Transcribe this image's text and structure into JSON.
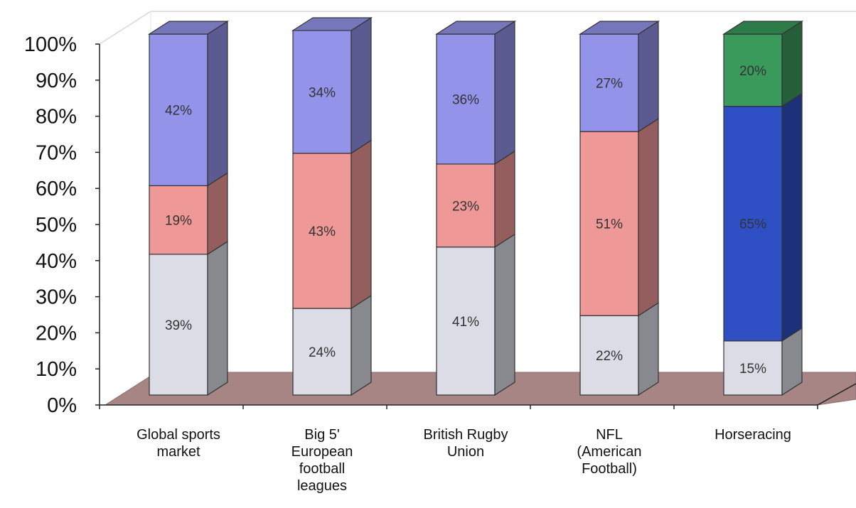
{
  "chart_data": {
    "type": "bar",
    "stacked": true,
    "title": "",
    "xlabel": "",
    "ylabel": "",
    "ylim": [
      0,
      100
    ],
    "y_ticks": [
      "0%",
      "10%",
      "20%",
      "30%",
      "40%",
      "50%",
      "60%",
      "70%",
      "80%",
      "90%",
      "100%"
    ],
    "categories": [
      "Global sports\nmarket",
      "Big 5'\nEuropean\nfootball\nleagues",
      "British Rugby\nUnion",
      "NFL\n(American\nFootball)",
      "Horseracing"
    ],
    "bars": [
      {
        "segments": [
          {
            "value": 39,
            "label": "39%",
            "color": "#dcdce6"
          },
          {
            "value": 19,
            "label": "19%",
            "color": "#ef9898"
          },
          {
            "value": 42,
            "label": "42%",
            "color": "#9393ea"
          }
        ]
      },
      {
        "segments": [
          {
            "value": 24,
            "label": "24%",
            "color": "#dcdce6"
          },
          {
            "value": 43,
            "label": "43%",
            "color": "#ef9898"
          },
          {
            "value": 34,
            "label": "34%",
            "color": "#9393ea"
          }
        ]
      },
      {
        "segments": [
          {
            "value": 41,
            "label": "41%",
            "color": "#dcdce6"
          },
          {
            "value": 23,
            "label": "23%",
            "color": "#ef9898"
          },
          {
            "value": 36,
            "label": "36%",
            "color": "#9393ea"
          }
        ]
      },
      {
        "segments": [
          {
            "value": 22,
            "label": "22%",
            "color": "#dcdce6"
          },
          {
            "value": 51,
            "label": "51%",
            "color": "#ef9898"
          },
          {
            "value": 27,
            "label": "27%",
            "color": "#9393ea"
          }
        ]
      },
      {
        "segments": [
          {
            "value": 15,
            "label": "15%",
            "color": "#dcdce6"
          },
          {
            "value": 65,
            "label": "65%",
            "color": "#2f4fc4"
          },
          {
            "value": 20,
            "label": "20%",
            "color": "#3a9a5c"
          }
        ]
      }
    ],
    "grid": false,
    "legend": "none",
    "floor_color": "#a78585"
  }
}
